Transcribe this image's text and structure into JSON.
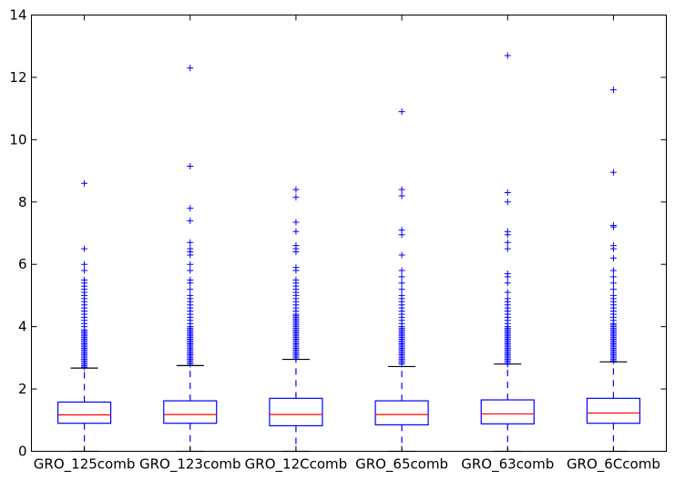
{
  "chart_data": {
    "type": "box",
    "title": "",
    "xlabel": "",
    "ylabel": "",
    "ylim": [
      0,
      14
    ],
    "yticks": [
      0,
      2,
      4,
      6,
      8,
      10,
      12,
      14
    ],
    "ytick_labels": [
      "0",
      "2",
      "4",
      "6",
      "8",
      "10",
      "12",
      "14"
    ],
    "grid": false,
    "categories": [
      "GRO_125comb",
      "GRO_123comb",
      "GRO_12Ccomb",
      "GRO_65comb",
      "GRO_63comb",
      "GRO_6Ccomb"
    ],
    "colors": {
      "box": "#0000ff",
      "median": "#ff0000",
      "whisker": "#0000ff",
      "cap": "#000000",
      "flier": "#0000ff",
      "axes": "#000000"
    },
    "boxes": [
      {
        "name": "GRO_125comb",
        "whisker_low": 0.0,
        "q1": 0.9,
        "median": 1.17,
        "q3": 1.58,
        "whisker_high": 2.67,
        "flier_dense_from": 2.7,
        "flier_dense_to": 3.9,
        "fliers": [
          4.0,
          4.1,
          4.2,
          4.3,
          4.4,
          4.5,
          4.6,
          4.7,
          4.8,
          4.9,
          5.0,
          5.1,
          5.2,
          5.3,
          5.4,
          5.5,
          5.8,
          6.0,
          6.5,
          8.6
        ]
      },
      {
        "name": "GRO_123comb",
        "whisker_low": 0.0,
        "q1": 0.9,
        "median": 1.18,
        "q3": 1.62,
        "whisker_high": 2.75,
        "flier_dense_from": 2.8,
        "flier_dense_to": 4.0,
        "fliers": [
          4.1,
          4.2,
          4.3,
          4.4,
          4.5,
          4.6,
          4.7,
          4.8,
          4.9,
          5.0,
          5.2,
          5.4,
          5.5,
          5.8,
          6.0,
          6.3,
          6.4,
          6.5,
          6.7,
          7.4,
          7.8,
          9.15,
          12.3
        ]
      },
      {
        "name": "GRO_12Ccomb",
        "whisker_low": 0.0,
        "q1": 0.82,
        "median": 1.18,
        "q3": 1.7,
        "whisker_high": 2.95,
        "flier_dense_from": 3.0,
        "flier_dense_to": 4.4,
        "fliers": [
          4.5,
          4.6,
          4.7,
          4.8,
          4.9,
          5.0,
          5.1,
          5.2,
          5.3,
          5.4,
          5.5,
          5.8,
          5.9,
          6.4,
          6.5,
          6.6,
          7.05,
          7.35,
          8.15,
          8.4
        ]
      },
      {
        "name": "GRO_65comb",
        "whisker_low": 0.0,
        "q1": 0.85,
        "median": 1.18,
        "q3": 1.62,
        "whisker_high": 2.72,
        "flier_dense_from": 2.8,
        "flier_dense_to": 4.0,
        "fliers": [
          4.1,
          4.2,
          4.3,
          4.4,
          4.5,
          4.6,
          4.7,
          4.8,
          4.9,
          5.0,
          5.2,
          5.4,
          5.6,
          5.8,
          6.3,
          6.95,
          7.1,
          8.2,
          8.4,
          10.9
        ]
      },
      {
        "name": "GRO_63comb",
        "whisker_low": 0.0,
        "q1": 0.88,
        "median": 1.2,
        "q3": 1.65,
        "whisker_high": 2.8,
        "flier_dense_from": 2.8,
        "flier_dense_to": 4.0,
        "fliers": [
          4.1,
          4.2,
          4.3,
          4.4,
          4.5,
          4.6,
          4.7,
          4.8,
          4.9,
          5.1,
          5.4,
          5.6,
          5.7,
          6.5,
          6.7,
          6.95,
          7.05,
          8.0,
          8.3,
          12.7
        ]
      },
      {
        "name": "GRO_6Ccomb",
        "whisker_low": 0.0,
        "q1": 0.9,
        "median": 1.23,
        "q3": 1.7,
        "whisker_high": 2.87,
        "flier_dense_from": 2.9,
        "flier_dense_to": 4.1,
        "fliers": [
          4.2,
          4.3,
          4.4,
          4.5,
          4.6,
          4.7,
          4.8,
          4.9,
          5.0,
          5.2,
          5.4,
          5.6,
          5.8,
          6.2,
          6.5,
          6.6,
          7.2,
          7.25,
          8.95,
          11.6
        ]
      }
    ]
  }
}
